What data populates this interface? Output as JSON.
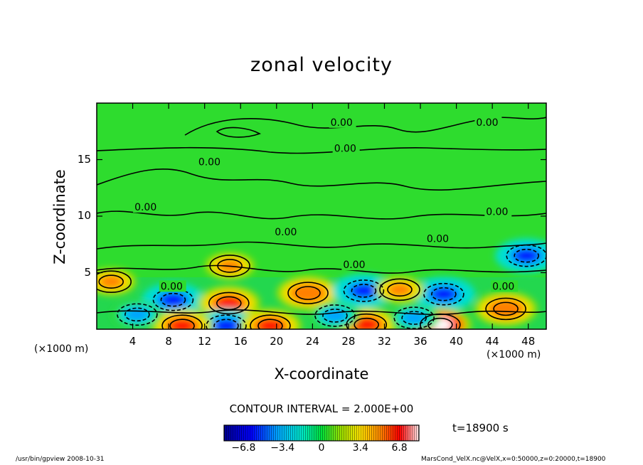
{
  "chart_data": {
    "type": "heatmap",
    "title": "zonal velocity",
    "xlabel": "X-coordinate",
    "ylabel": "Z-coordinate",
    "x_unit_left": "(×1000 m)",
    "x_unit_right": "(×1000 m)",
    "xlim": [
      0,
      50
    ],
    "ylim": [
      0,
      20
    ],
    "x_ticks": [
      4,
      8,
      12,
      16,
      20,
      24,
      28,
      32,
      36,
      40,
      44,
      48
    ],
    "x_tick_labels": [
      "4",
      "8",
      "12",
      "16",
      "20",
      "24",
      "28",
      "32",
      "36",
      "40",
      "44",
      "48"
    ],
    "y_ticks": [
      5,
      10,
      15
    ],
    "y_tick_labels": [
      "5",
      "10",
      "15"
    ],
    "contour_interval_text": "CONTOUR INTERVAL = 2.000E+00",
    "contour_label_text": "0.00",
    "contour_labels": [
      {
        "text": "0.00",
        "x": 26,
        "z": 18.0
      },
      {
        "text": "0.00",
        "x": 42.2,
        "z": 18.0
      },
      {
        "text": "0.00",
        "x": 26.4,
        "z": 15.7
      },
      {
        "text": "0.00",
        "x": 11.3,
        "z": 14.5
      },
      {
        "text": "0.00",
        "x": 4.2,
        "z": 10.5
      },
      {
        "text": "0.00",
        "x": 43.3,
        "z": 10.1
      },
      {
        "text": "0.00",
        "x": 19.8,
        "z": 8.3
      },
      {
        "text": "0.00",
        "x": 36.7,
        "z": 7.7
      },
      {
        "text": "0.00",
        "x": 27.4,
        "z": 5.4
      },
      {
        "text": "0.00",
        "x": 7.1,
        "z": 3.5
      },
      {
        "text": "0.00",
        "x": 44.0,
        "z": 3.5
      }
    ],
    "colorbar": {
      "min": -8.5,
      "max": 8.5,
      "ticks": [
        -6.8,
        -3.4,
        0,
        3.4,
        6.8
      ],
      "tick_labels": [
        "−6.8",
        "−3.4",
        "0",
        "3.4",
        "6.8"
      ]
    },
    "features": [
      {
        "x": 8.5,
        "z": 2.6,
        "value": -6.0
      },
      {
        "x": 14.7,
        "z": 2.3,
        "value": 6.5
      },
      {
        "x": 23.5,
        "z": 3.2,
        "value": 5.5
      },
      {
        "x": 29.7,
        "z": 3.4,
        "value": -6.0
      },
      {
        "x": 38.6,
        "z": 3.1,
        "value": -6.0
      },
      {
        "x": 47.8,
        "z": 6.5,
        "value": -6.0
      },
      {
        "x": 45.5,
        "z": 1.8,
        "value": 5.5
      },
      {
        "x": 14.4,
        "z": 0.3,
        "value": -6.0
      },
      {
        "x": 30.0,
        "z": 0.4,
        "value": 7.0
      },
      {
        "x": 38.2,
        "z": 0.4,
        "value": 7.5
      },
      {
        "x": 9.5,
        "z": 0.3,
        "value": 7.0
      },
      {
        "x": 19.3,
        "z": 0.3,
        "value": 6.0
      },
      {
        "x": 14.8,
        "z": 5.6,
        "value": 4.5
      },
      {
        "x": 33.7,
        "z": 3.5,
        "value": 5.0
      },
      {
        "x": 1.6,
        "z": 4.2,
        "value": 5.0
      },
      {
        "x": 4.5,
        "z": 1.3,
        "value": -4.0
      },
      {
        "x": 26.5,
        "z": 1.2,
        "value": -4.0
      },
      {
        "x": 35.3,
        "z": 1.0,
        "value": -4.0
      }
    ],
    "time_text": "t=18900 s"
  },
  "footer": {
    "left": "/usr/bin/gpview   2008-10-31",
    "right": "MarsCond_VelX.nc@VelX,x=0:50000,z=0:20000,t=18900"
  }
}
